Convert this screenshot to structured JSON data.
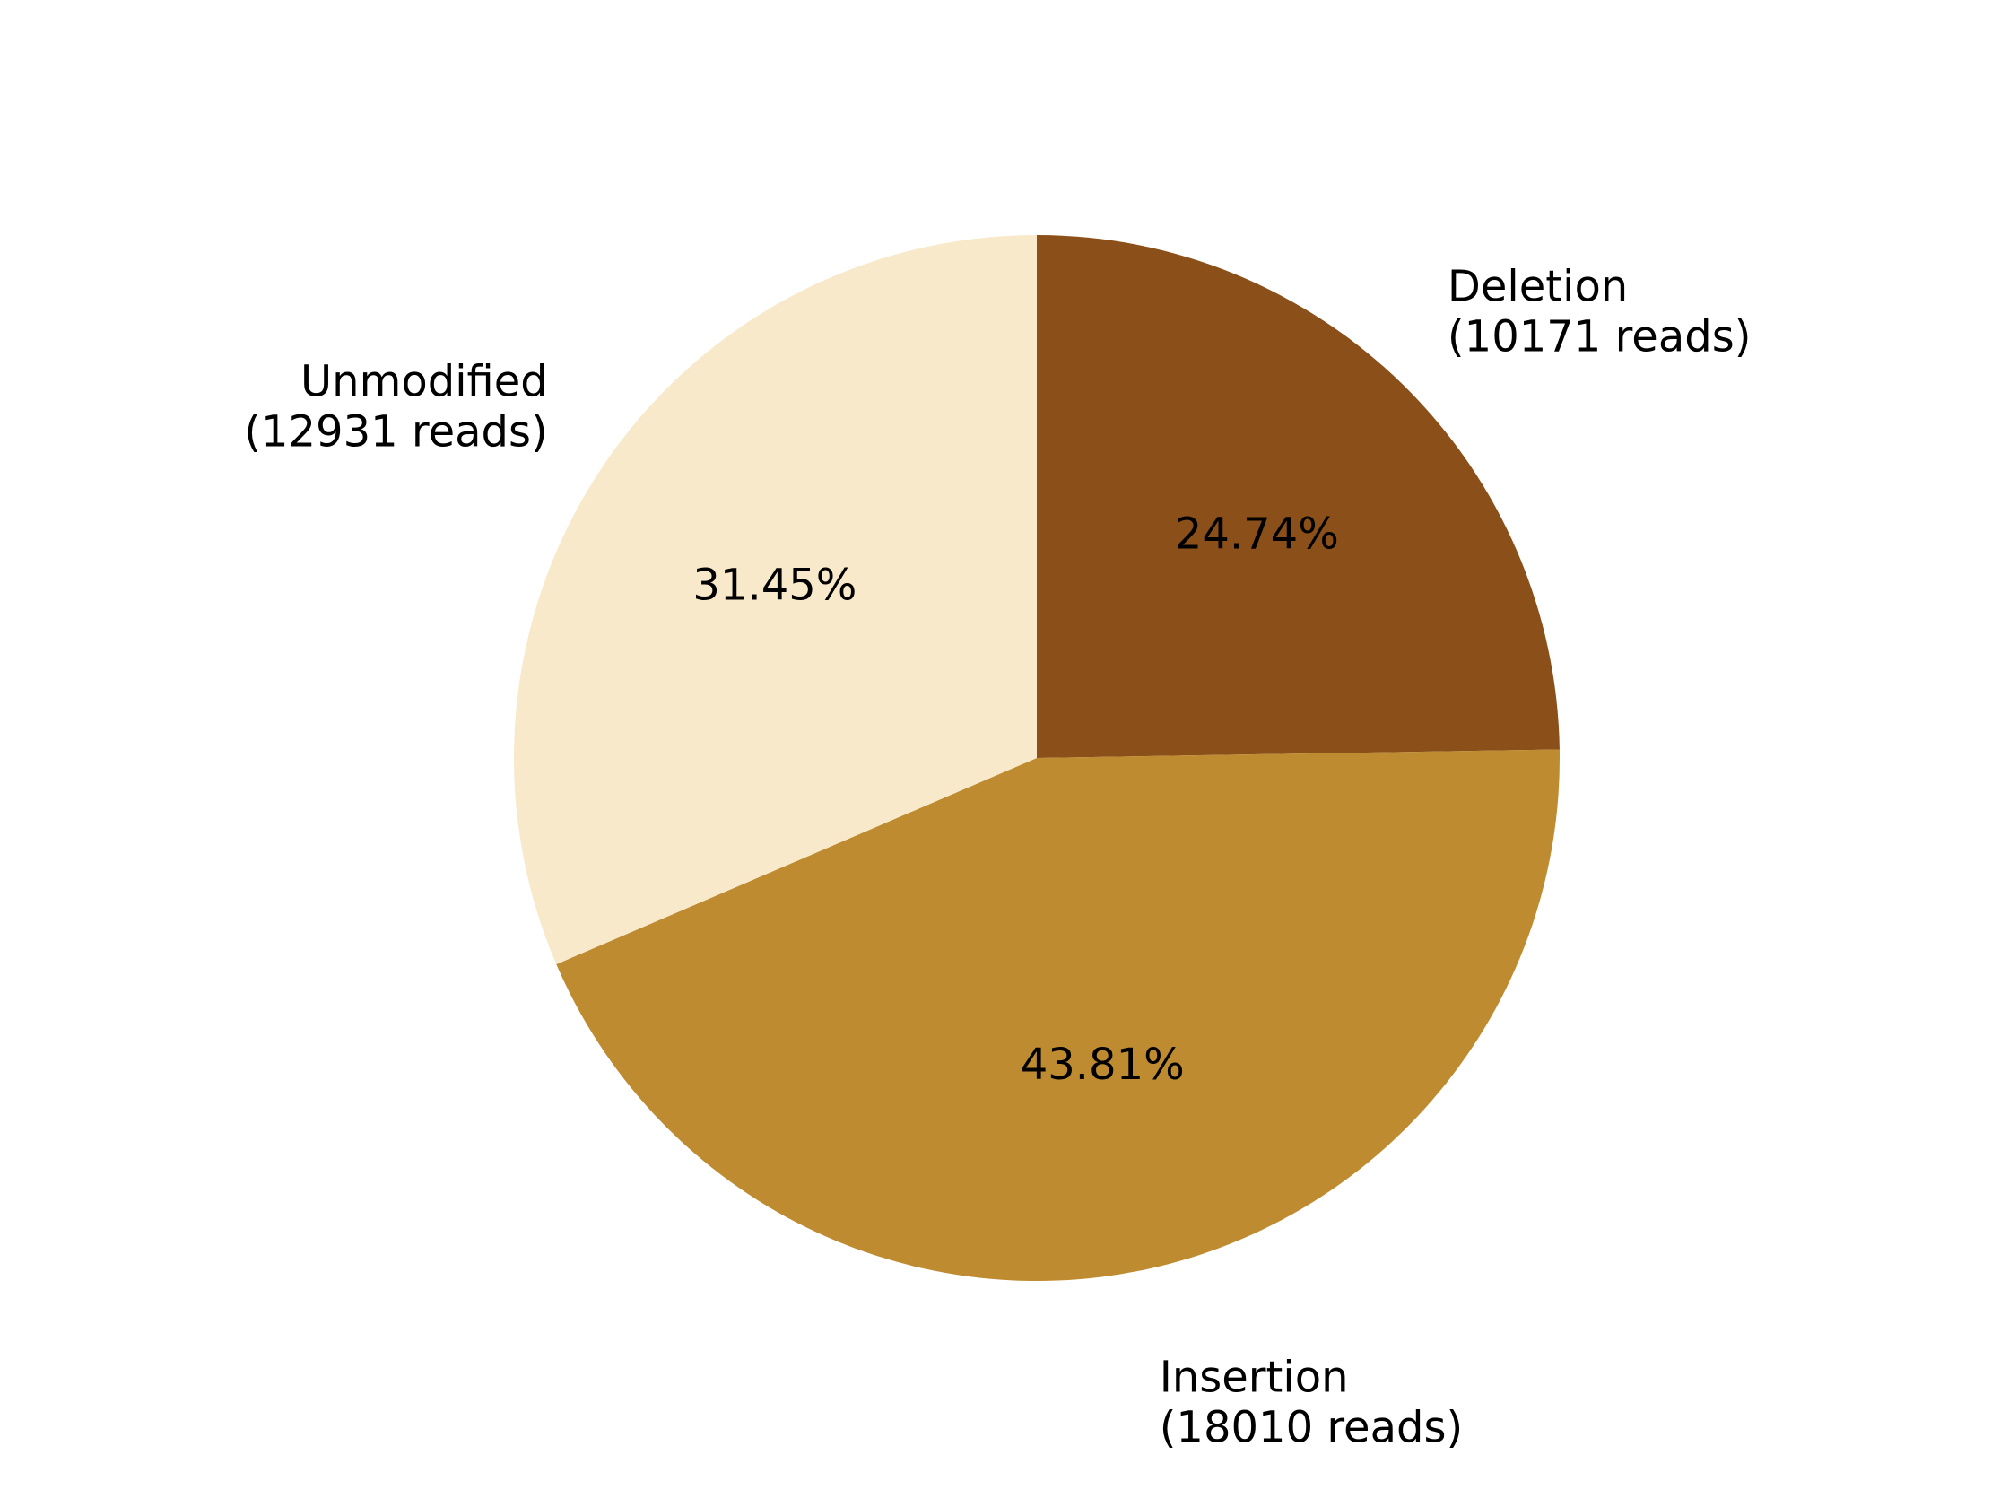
{
  "chart_data": {
    "type": "pie",
    "title": "",
    "start_angle_deg": 90,
    "direction": "clockwise",
    "slices": [
      {
        "name": "Deletion",
        "reads_label": "(10171 reads)",
        "value": 10171,
        "percent_label": "24.74%",
        "color": "#8B4F1A"
      },
      {
        "name": "Insertion",
        "reads_label": "(18010 reads)",
        "value": 18010,
        "percent_label": "43.81%",
        "color": "#BF8B30"
      },
      {
        "name": "Unmodified",
        "reads_label": "(12931 reads)",
        "value": 12931,
        "percent_label": "31.45%",
        "color": "#F8E9CA"
      }
    ]
  }
}
